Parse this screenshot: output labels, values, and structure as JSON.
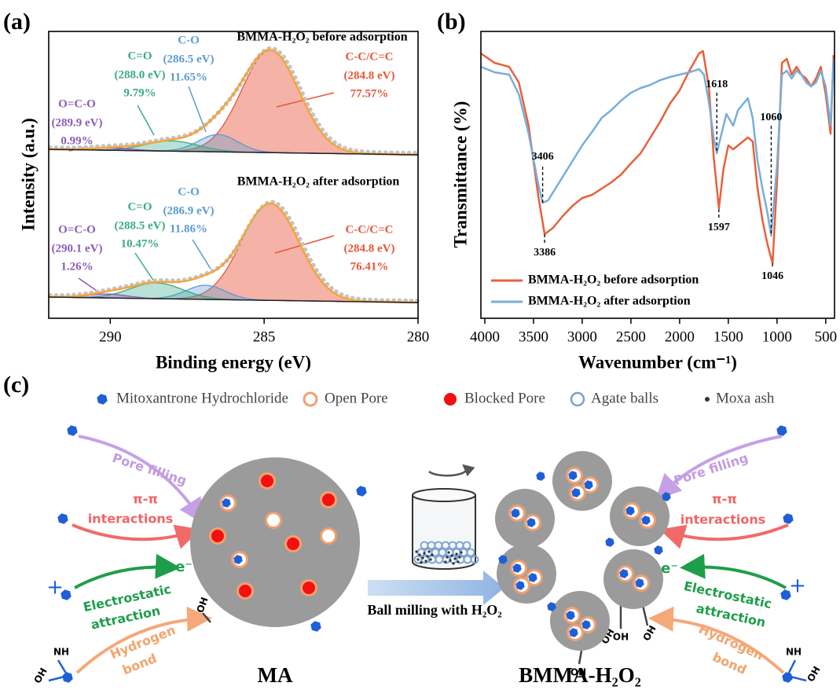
{
  "panel_labels": [
    "(a)",
    "(b)",
    "(c)"
  ],
  "chart_data": [
    {
      "type": "xps",
      "x_label": "Binding energy (eV)",
      "y_label": "Intensity (a.u.)",
      "xlim": [
        292,
        280
      ],
      "xticks": [
        290,
        285,
        280
      ],
      "ylim": [
        0,
        73
      ],
      "envelope_color": "#f5a53a",
      "point_color": "#c4c4c4",
      "background_color": "#222222",
      "spectra": [
        {
          "title": "BMMA-H₂O₂ before adsorption",
          "background": [
            43,
            41.6
          ],
          "components": [
            {
              "name": "C-C/C=C",
              "energy_label": "(284.8 eV)",
              "percent": "77.57%",
              "color": "#e8553a",
              "center": 284.8,
              "height": 26,
              "fwhm": 2.2
            },
            {
              "name": "C-O",
              "energy_label": "(286.5 eV)",
              "percent": "11.65%",
              "color": "#5b9bd5",
              "center": 286.5,
              "height": 4.4,
              "fwhm": 1.5
            },
            {
              "name": "C=O",
              "energy_label": "(288.0 eV)",
              "percent": "9.79%",
              "color": "#3aaa86",
              "center": 288.0,
              "height": 2.6,
              "fwhm": 2.0
            },
            {
              "name": "O=C-O",
              "energy_label": "(289.9 eV)",
              "percent": "0.99%",
              "color": "#8a5cb8",
              "center": 289.9,
              "height": 0.6,
              "fwhm": 1.5
            }
          ]
        },
        {
          "title": "BMMA-H₂O₂ after adsorption",
          "background": [
            5.4,
            4
          ],
          "components": [
            {
              "name": "C-C/C=C",
              "energy_label": "(284.8 eV)",
              "percent": "76.41%",
              "color": "#e8553a",
              "center": 284.8,
              "height": 24.6,
              "fwhm": 2.2
            },
            {
              "name": "C-O",
              "energy_label": "(286.9 eV)",
              "percent": "11.86%",
              "color": "#5b9bd5",
              "center": 286.9,
              "height": 3.6,
              "fwhm": 1.5
            },
            {
              "name": "C=O",
              "energy_label": "(288.5 eV)",
              "percent": "10.47%",
              "color": "#3aaa86",
              "center": 288.5,
              "height": 4,
              "fwhm": 2.0
            },
            {
              "name": "O=C-O",
              "energy_label": "(290.1 eV)",
              "percent": "1.26%",
              "color": "#8a5cb8",
              "center": 290.1,
              "height": 1,
              "fwhm": 1.5
            }
          ]
        }
      ]
    },
    {
      "type": "line",
      "x_label": "Wavenumber (cm⁻¹)",
      "y_label": "Transmittance (%)",
      "xlim": [
        4040,
        410
      ],
      "xticks": [
        4000,
        3500,
        3000,
        2500,
        2000,
        1500,
        1000,
        500
      ],
      "ylim": [
        0,
        73
      ],
      "legend": "lower left",
      "series": [
        {
          "name": "BMMA-H₂O₂ before adsorption",
          "color": "#e8603c",
          "x": [
            4040,
            3900,
            3750,
            3650,
            3550,
            3450,
            3386,
            3300,
            3200,
            3100,
            3000,
            2900,
            2800,
            2700,
            2600,
            2500,
            2400,
            2300,
            2200,
            2100,
            2000,
            1900,
            1800,
            1760,
            1700,
            1650,
            1597,
            1550,
            1500,
            1450,
            1400,
            1300,
            1250,
            1200,
            1150,
            1100,
            1046,
            1000,
            950,
            900,
            850,
            800,
            750,
            700,
            650,
            600,
            550,
            500,
            450,
            420
          ],
          "values": [
            67.4,
            65,
            64,
            60,
            49,
            31,
            21.4,
            23,
            26,
            28.6,
            30.6,
            31.4,
            33,
            34.6,
            36.6,
            39.4,
            42,
            46,
            50,
            54.6,
            58,
            63,
            67.4,
            68,
            59,
            41,
            28,
            38,
            44,
            43,
            44,
            46,
            45,
            33,
            25,
            19,
            14,
            35,
            65,
            66,
            62,
            64,
            62,
            61,
            59,
            61,
            64,
            57,
            47,
            67
          ]
        },
        {
          "name": "BMMA-H₂O₂ after adsorption",
          "color": "#78aedb",
          "x": [
            4040,
            3900,
            3750,
            3650,
            3550,
            3450,
            3406,
            3350,
            3250,
            3100,
            3000,
            2900,
            2800,
            2700,
            2600,
            2500,
            2400,
            2300,
            2200,
            2100,
            2000,
            1900,
            1800,
            1750,
            1700,
            1650,
            1618,
            1580,
            1520,
            1450,
            1400,
            1300,
            1250,
            1200,
            1150,
            1100,
            1060,
            1000,
            950,
            900,
            850,
            800,
            750,
            700,
            650,
            600,
            550,
            500,
            450,
            420
          ],
          "values": [
            64,
            62.6,
            62,
            57,
            47,
            34,
            29.4,
            30,
            34,
            40,
            44,
            47.4,
            51,
            53,
            55.4,
            57.4,
            58.6,
            59.4,
            60.6,
            61.4,
            62,
            62.6,
            63.4,
            62,
            55,
            46,
            42,
            46,
            52,
            49,
            53,
            56,
            51,
            40,
            33,
            27,
            21,
            39,
            62,
            63,
            61,
            63,
            62,
            60,
            59,
            60,
            63,
            59,
            49,
            66
          ]
        }
      ],
      "peak_labels": [
        3406,
        3386,
        1618,
        1597,
        1060,
        1046
      ]
    }
  ],
  "diagram": {
    "legend": [
      "Mitoxantrone Hydrochloride",
      "Open Pore",
      "Blocked Pore",
      "Agate balls",
      "Moxa ash"
    ],
    "mechanisms": {
      "pore_filling": "Pore filling",
      "pi": "π-π",
      "interactions": "interactions",
      "electrostatic": "Electrostatic",
      "attraction": "attraction",
      "hydrogen": "Hydrogen",
      "bond": "bond"
    },
    "charges": {
      "electron": "e⁻",
      "cation": "+"
    },
    "groups": {
      "hydroxyl": "OH",
      "amine": "NH"
    },
    "process": "Ball milling with H₂O₂",
    "captions": [
      "MA",
      "BMMA-H₂O₂"
    ]
  }
}
